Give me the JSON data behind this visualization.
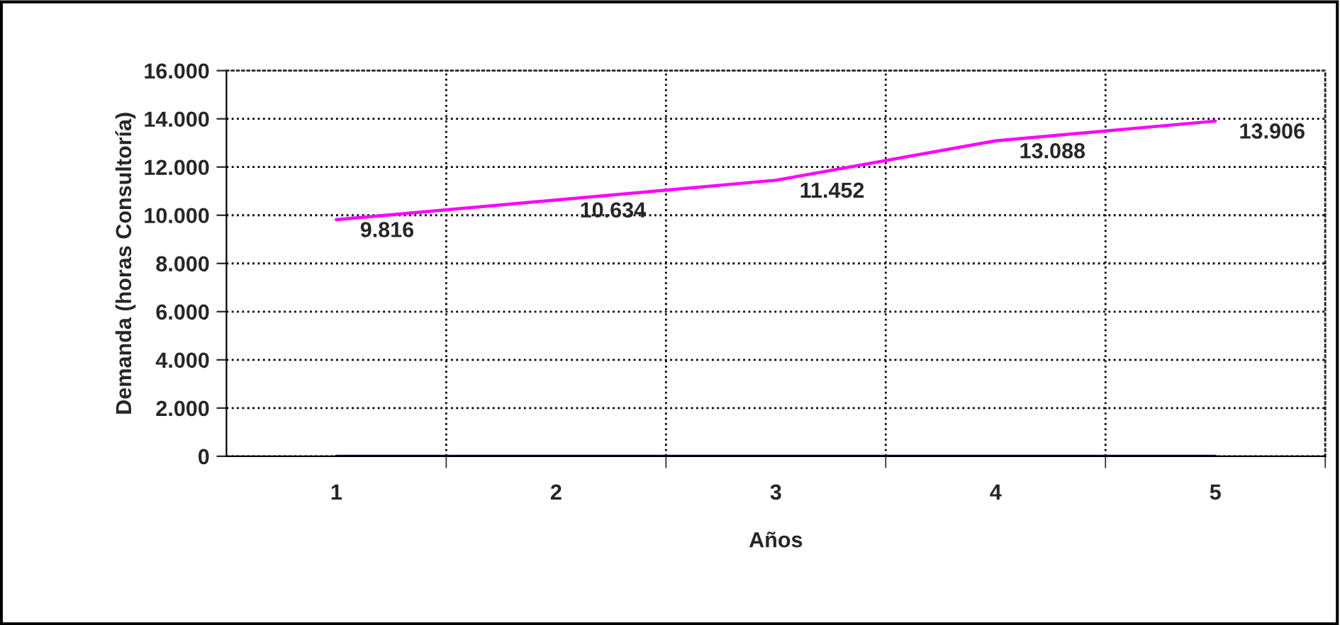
{
  "chart_data": {
    "type": "line",
    "xlabel": "Años",
    "ylabel": "Demanda (horas Consultoría)",
    "categories": [
      "1",
      "2",
      "3",
      "4",
      "5"
    ],
    "series": [
      {
        "color": "#ff00ff",
        "values": [
          9816,
          10634,
          11452,
          13088,
          13906
        ],
        "value_labels": [
          "9.816",
          "10.634",
          "11.452",
          "13.088",
          "13.906"
        ]
      },
      {
        "color": "#000080",
        "values": [
          0,
          0,
          0,
          0,
          0
        ]
      }
    ],
    "ylim": [
      0,
      16000
    ],
    "yticks": [
      {
        "value": 0,
        "label": "0"
      },
      {
        "value": 2000,
        "label": "2.000"
      },
      {
        "value": 4000,
        "label": "4.000"
      },
      {
        "value": 6000,
        "label": "6.000"
      },
      {
        "value": 8000,
        "label": "8.000"
      },
      {
        "value": 10000,
        "label": "10.000"
      },
      {
        "value": 12000,
        "label": "12.000"
      },
      {
        "value": 14000,
        "label": "14.000"
      },
      {
        "value": 16000,
        "label": "16.000"
      }
    ],
    "grid": true,
    "marker": "none",
    "line_style": "solid"
  }
}
